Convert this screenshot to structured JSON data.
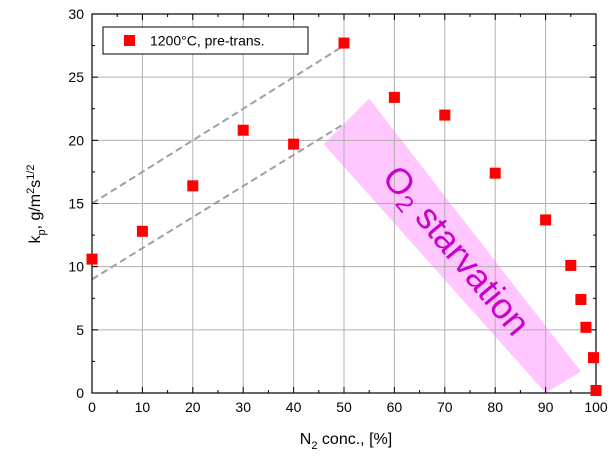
{
  "chart_data": {
    "type": "scatter",
    "xlabel": "N",
    "xlabel_sub": "2",
    "xlabel_rest": " conc., [%]",
    "ylabel_main": "k",
    "ylabel_sub": "p",
    "ylabel_rest1": ", g/m",
    "ylabel_sup1": "2",
    "ylabel_rest2": "s",
    "ylabel_sup2": "1/2",
    "xlim": [
      0,
      100
    ],
    "ylim": [
      0,
      30
    ],
    "x_ticks": [
      0,
      10,
      20,
      30,
      40,
      50,
      60,
      70,
      80,
      90,
      100
    ],
    "y_ticks": [
      0,
      5,
      10,
      15,
      20,
      25,
      30
    ],
    "grid": true,
    "legend_position": "top-left",
    "series": [
      {
        "name": "1200°C, pre-trans.",
        "color": "#ff0000",
        "marker": "square",
        "points": [
          {
            "x": 0,
            "y": 10.6
          },
          {
            "x": 10,
            "y": 12.8
          },
          {
            "x": 20,
            "y": 16.4
          },
          {
            "x": 30,
            "y": 20.8
          },
          {
            "x": 40,
            "y": 19.7
          },
          {
            "x": 50,
            "y": 27.7
          },
          {
            "x": 60,
            "y": 23.4
          },
          {
            "x": 70,
            "y": 22.0
          },
          {
            "x": 80,
            "y": 17.4
          },
          {
            "x": 90,
            "y": 13.7
          },
          {
            "x": 95,
            "y": 10.1
          },
          {
            "x": 97,
            "y": 7.4
          },
          {
            "x": 98,
            "y": 5.2
          },
          {
            "x": 99.5,
            "y": 2.8
          },
          {
            "x": 100,
            "y": 0.2
          }
        ]
      }
    ],
    "guide_lines": [
      {
        "x1": 0,
        "y1": 15.0,
        "x2": 50,
        "y2": 27.5,
        "color": "#a0a0a0",
        "style": "dashed"
      },
      {
        "x1": 0,
        "y1": 9.0,
        "x2": 50,
        "y2": 21.3,
        "color": "#a0a0a0",
        "style": "dashed"
      }
    ],
    "annotation": {
      "text_main": "O",
      "text_sub": "2",
      "text_rest": " starvation",
      "color": "#cc00cc",
      "band_color": "#ff80ff",
      "band_polygon": [
        {
          "x": 46,
          "y": 19.7
        },
        {
          "x": 55,
          "y": 23.3
        },
        {
          "x": 97,
          "y": 1.7
        },
        {
          "x": 90,
          "y": 0
        }
      ]
    }
  }
}
